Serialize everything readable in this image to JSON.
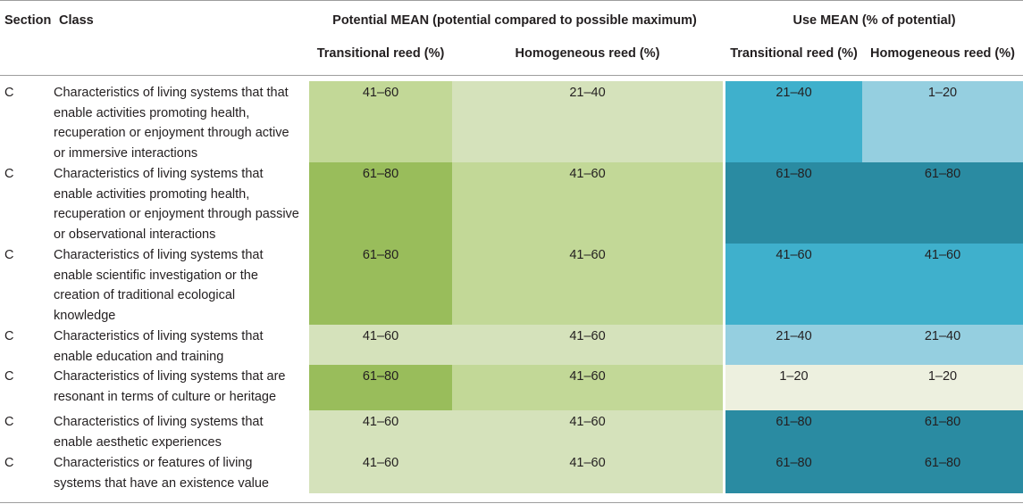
{
  "headers": {
    "section": "Section",
    "class": "Class",
    "potential_group": "Potential MEAN (potential compared to possible maximum)",
    "use_group": "Use MEAN (% of potential)",
    "transitional": "Transitional reed (%)",
    "homogeneous": "Homogeneous reed (%)"
  },
  "colors": {
    "g1": "#e8eddb",
    "g2": "#d5e2bb",
    "g3": "#c2d897",
    "g4": "#99bd5b",
    "b1": "#edf0df",
    "b2": "#95cfe0",
    "b3": "#3fb0cc",
    "b4": "#2a8ba2"
  },
  "rows": [
    {
      "section": "C",
      "class_lines": [
        "Characteristics of living systems that that",
        "enable activities promoting health,",
        "recuperation or enjoyment through active",
        "or immersive interactions"
      ],
      "values": [
        "41–60",
        "21–40",
        "21–40",
        "1–20"
      ],
      "colors": [
        "g3",
        "g2",
        "b3",
        "b2"
      ]
    },
    {
      "section": "C",
      "class_lines": [
        "Characteristics of living systems that",
        "enable activities promoting health,",
        "recuperation or enjoyment through passive",
        "or observational interactions"
      ],
      "values": [
        "61–80",
        "41–60",
        "61–80",
        "61–80"
      ],
      "colors": [
        "g4",
        "g3",
        "b4",
        "b4"
      ]
    },
    {
      "section": "C",
      "class_lines": [
        "Characteristics of living systems that",
        "enable scientific investigation or the",
        "creation of traditional ecological",
        "knowledge"
      ],
      "values": [
        "61–80",
        "41–60",
        "41–60",
        "41–60"
      ],
      "colors": [
        "g4",
        "g3",
        "b3",
        "b3"
      ]
    },
    {
      "section": "C",
      "class_lines": [
        "Characteristics of living systems that",
        "enable education and training"
      ],
      "values": [
        "41–60",
        "41–60",
        "21–40",
        "21–40"
      ],
      "colors": [
        "g2",
        "g2",
        "b2",
        "b2"
      ]
    },
    {
      "section": "C",
      "class_lines": [
        "Characteristics of living systems that are",
        "resonant in terms of culture or heritage"
      ],
      "values": [
        "61–80",
        "41–60",
        "1–20",
        "1–20"
      ],
      "colors": [
        "g4",
        "g3",
        "b1",
        "b1"
      ]
    },
    {
      "section": "C",
      "class_lines": [
        "Characteristics of living systems that",
        "enable aesthetic experiences"
      ],
      "values": [
        "41–60",
        "41–60",
        "61–80",
        "61–80"
      ],
      "colors": [
        "g2",
        "g2",
        "b4",
        "b4"
      ]
    },
    {
      "section": "C",
      "class_lines": [
        "Characteristics or features of living",
        "systems that have an existence value"
      ],
      "values": [
        "41–60",
        "41–60",
        "61–80",
        "61–80"
      ],
      "colors": [
        "g2",
        "g2",
        "b4",
        "b4"
      ]
    }
  ]
}
